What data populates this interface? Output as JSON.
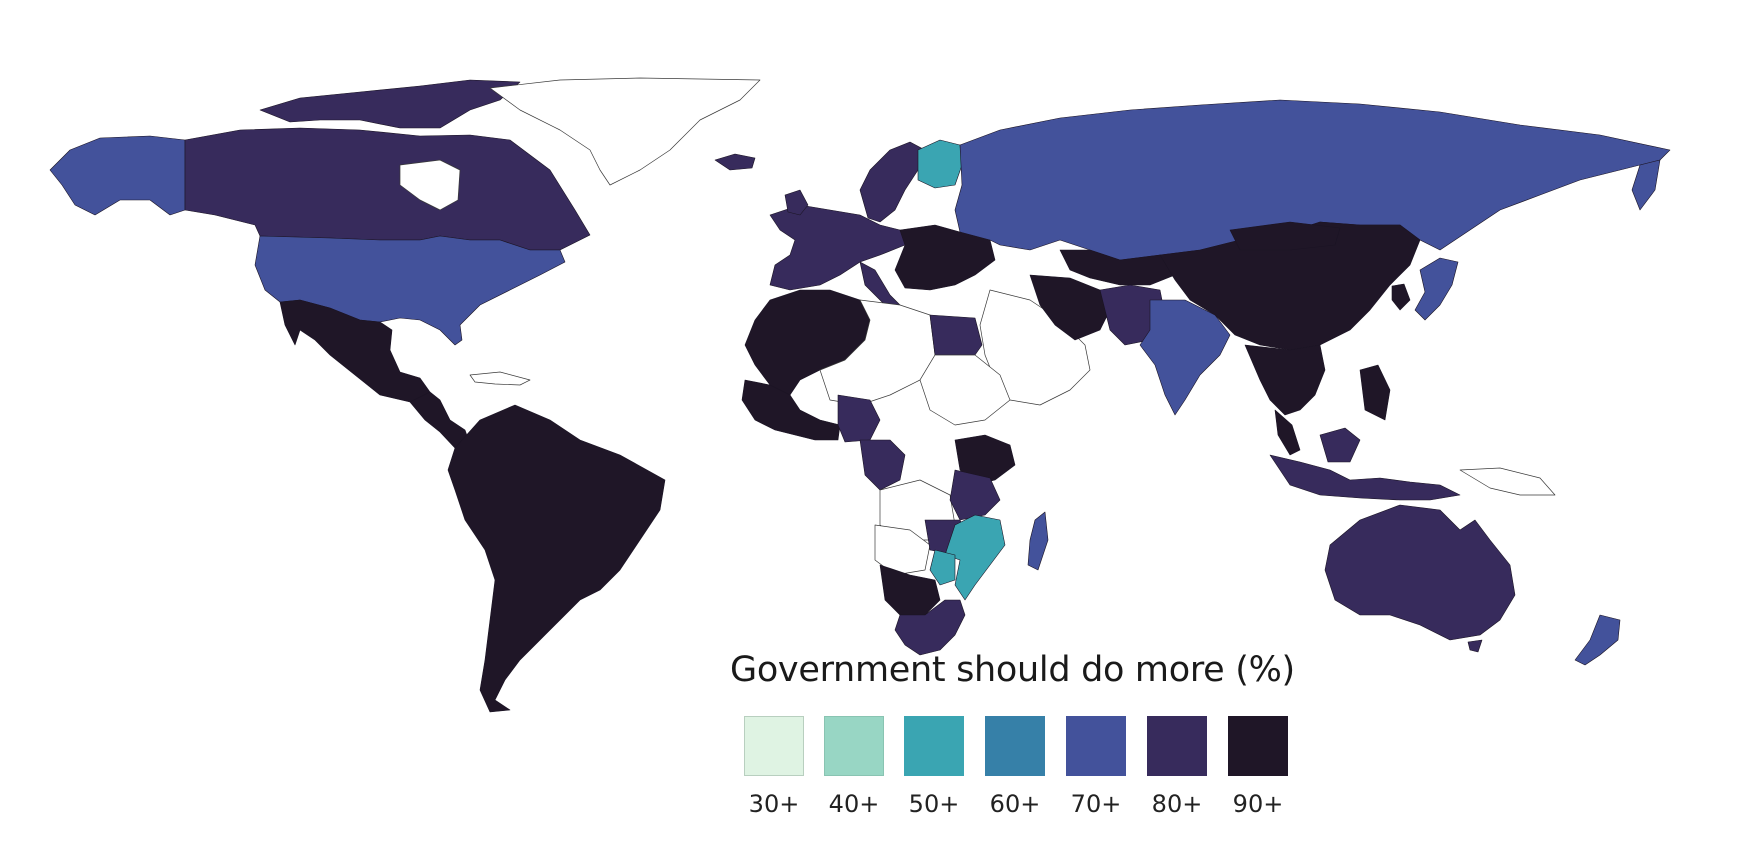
{
  "legend": {
    "title": "Government should do more (%)",
    "bins": [
      {
        "label": "30+",
        "color": "#dff3e3"
      },
      {
        "label": "40+",
        "color": "#98d6c4"
      },
      {
        "label": "50+",
        "color": "#3aa5b2"
      },
      {
        "label": "60+",
        "color": "#3680a8"
      },
      {
        "label": "70+",
        "color": "#43529b"
      },
      {
        "label": "80+",
        "color": "#372b5c"
      },
      {
        "label": "90+",
        "color": "#1f1627"
      }
    ]
  },
  "no_data_color": "#ffffff",
  "regions": [
    {
      "name": "alaska",
      "bin": "70+"
    },
    {
      "name": "canada",
      "bin": "80+"
    },
    {
      "name": "arctic-islands",
      "bin": "80+"
    },
    {
      "name": "greenland",
      "bin": "none"
    },
    {
      "name": "united-states",
      "bin": "70+"
    },
    {
      "name": "mexico",
      "bin": "90+"
    },
    {
      "name": "central-america",
      "bin": "90+"
    },
    {
      "name": "south-america",
      "bin": "90+"
    },
    {
      "name": "iceland",
      "bin": "80+"
    },
    {
      "name": "scandinavia",
      "bin": "80+"
    },
    {
      "name": "finland",
      "bin": "50+"
    },
    {
      "name": "western-europe",
      "bin": "80+"
    },
    {
      "name": "eastern-europe",
      "bin": "90+"
    },
    {
      "name": "russia",
      "bin": "70+"
    },
    {
      "name": "north-africa",
      "bin": "90+"
    },
    {
      "name": "egypt",
      "bin": "80+"
    },
    {
      "name": "west-africa",
      "bin": "90+"
    },
    {
      "name": "central-africa",
      "bin": "80+"
    },
    {
      "name": "east-africa",
      "bin": "90+"
    },
    {
      "name": "southern-africa",
      "bin": "80+"
    },
    {
      "name": "mozambique",
      "bin": "50+"
    },
    {
      "name": "madagascar",
      "bin": "70+"
    },
    {
      "name": "middle-east",
      "bin": "none"
    },
    {
      "name": "iran",
      "bin": "90+"
    },
    {
      "name": "afghanistan-pakistan",
      "bin": "80+"
    },
    {
      "name": "india",
      "bin": "70+"
    },
    {
      "name": "china",
      "bin": "90+"
    },
    {
      "name": "japan",
      "bin": "70+"
    },
    {
      "name": "southeast-asia",
      "bin": "90+"
    },
    {
      "name": "indonesia",
      "bin": "80+"
    },
    {
      "name": "australia",
      "bin": "80+"
    },
    {
      "name": "new-zealand",
      "bin": "70+"
    }
  ]
}
